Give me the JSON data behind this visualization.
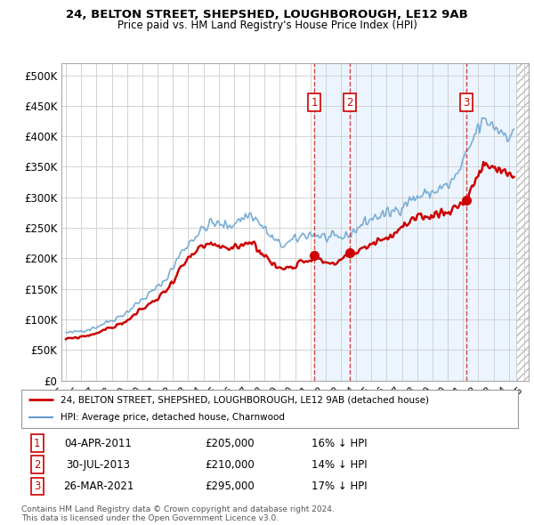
{
  "title": "24, BELTON STREET, SHEPSHED, LOUGHBOROUGH, LE12 9AB",
  "subtitle": "Price paid vs. HM Land Registry's House Price Index (HPI)",
  "yticks": [
    0,
    50000,
    100000,
    150000,
    200000,
    250000,
    300000,
    350000,
    400000,
    450000,
    500000
  ],
  "ytick_labels": [
    "£0",
    "£50K",
    "£100K",
    "£150K",
    "£200K",
    "£250K",
    "£300K",
    "£350K",
    "£400K",
    "£450K",
    "£500K"
  ],
  "ylim": [
    0,
    520000
  ],
  "xlim_start": 1994.7,
  "xlim_end": 2025.3,
  "transactions": [
    {
      "num": 1,
      "date_label": "04-APR-2011",
      "date_x": 2011.25,
      "price": 205000,
      "pct": "16%",
      "dir": "↓"
    },
    {
      "num": 2,
      "date_label": "30-JUL-2013",
      "date_x": 2013.58,
      "price": 210000,
      "pct": "14%",
      "dir": "↓"
    },
    {
      "num": 3,
      "date_label": "26-MAR-2021",
      "date_x": 2021.23,
      "price": 295000,
      "pct": "17%",
      "dir": "↓"
    }
  ],
  "legend_entries": [
    {
      "label": "24, BELTON STREET, SHEPSHED, LOUGHBOROUGH, LE12 9AB (detached house)",
      "color": "#cc0000",
      "lw": 2.0
    },
    {
      "label": "HPI: Average price, detached house, Charnwood",
      "color": "#6699cc",
      "lw": 1.5
    }
  ],
  "footer1": "Contains HM Land Registry data © Crown copyright and database right 2024.",
  "footer2": "This data is licensed under the Open Government Licence v3.0.",
  "bg_color": "#ffffff",
  "grid_color": "#cccccc",
  "transaction_vline_color": "#cc3333",
  "transaction_box_color": "#cc0000",
  "hpi_line_color": "#7aadd4",
  "sale_line_color": "#cc0000",
  "shade_color": "#ddeeff",
  "hatch_color": "#cccccc",
  "no_data_x": 2024.5
}
